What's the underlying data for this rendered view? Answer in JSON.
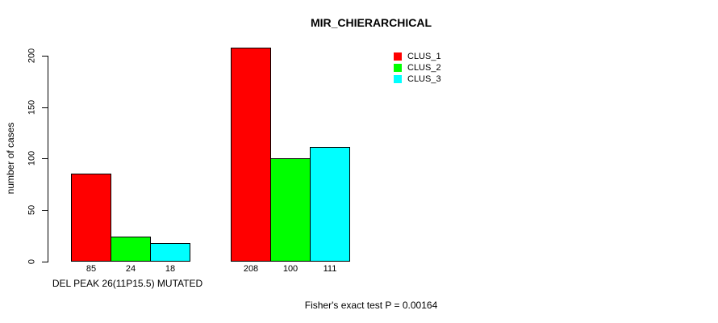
{
  "chart_data": {
    "type": "bar",
    "title": "MIR_CHIERARCHICAL",
    "ylabel": "number of cases",
    "xlabel": "DEL PEAK 26(11P15.5) MUTATED",
    "annotation": "Fisher's exact test P = 0.00164",
    "yticks": [
      0,
      50,
      100,
      150,
      200
    ],
    "num_groups": 2,
    "series": [
      {
        "name": "CLUS_1",
        "color": "#ff0000",
        "values": [
          85,
          208
        ]
      },
      {
        "name": "CLUS_2",
        "color": "#00ff00",
        "values": [
          24,
          100
        ]
      },
      {
        "name": "CLUS_3",
        "color": "#00ffff",
        "values": [
          18,
          111
        ]
      }
    ],
    "legend": {
      "position": "top-right",
      "entries": [
        "CLUS_1",
        "CLUS_2",
        "CLUS_3"
      ]
    },
    "grid": false,
    "show_bar_value_labels": true,
    "axis_color": "#000000",
    "background": "#ffffff"
  }
}
